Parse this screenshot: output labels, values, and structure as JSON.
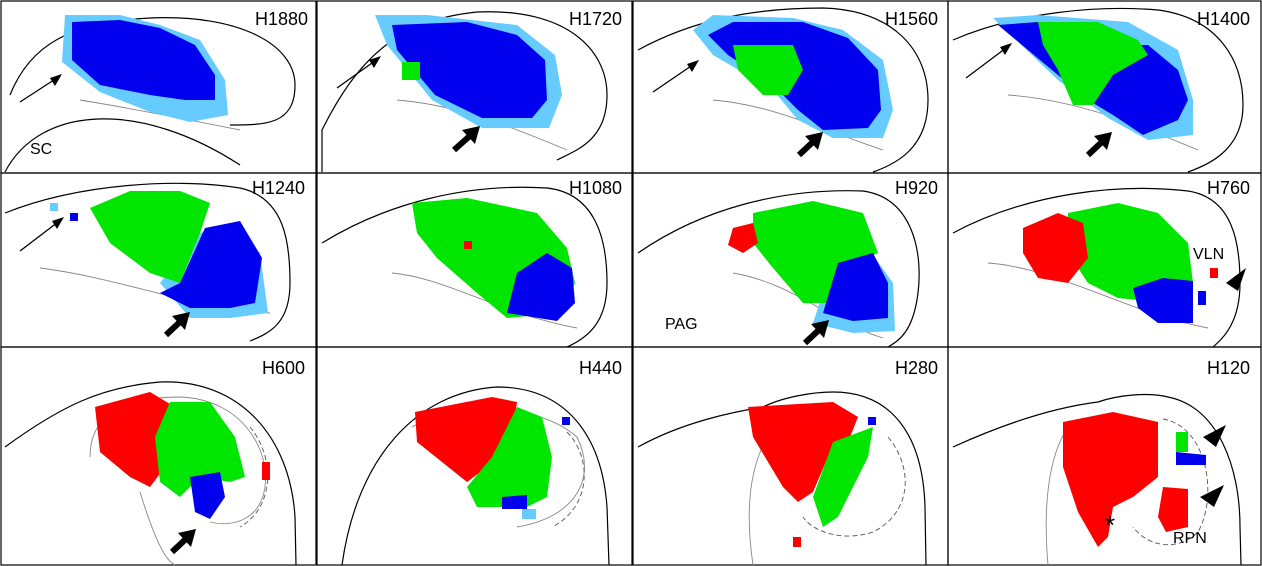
{
  "panels": [
    {
      "label": "H1880",
      "annotations": [
        "SC"
      ]
    },
    {
      "label": "H1720"
    },
    {
      "label": "H1560"
    },
    {
      "label": "H1400"
    },
    {
      "label": "H1240"
    },
    {
      "label": "H1080"
    },
    {
      "label": "H920",
      "annotations": [
        "PAG"
      ]
    },
    {
      "label": "H760",
      "annotations": [
        "VLN"
      ]
    },
    {
      "label": "H600"
    },
    {
      "label": "H440"
    },
    {
      "label": "H280"
    },
    {
      "label": "H120",
      "annotations": [
        "*",
        "RPN"
      ]
    }
  ]
}
